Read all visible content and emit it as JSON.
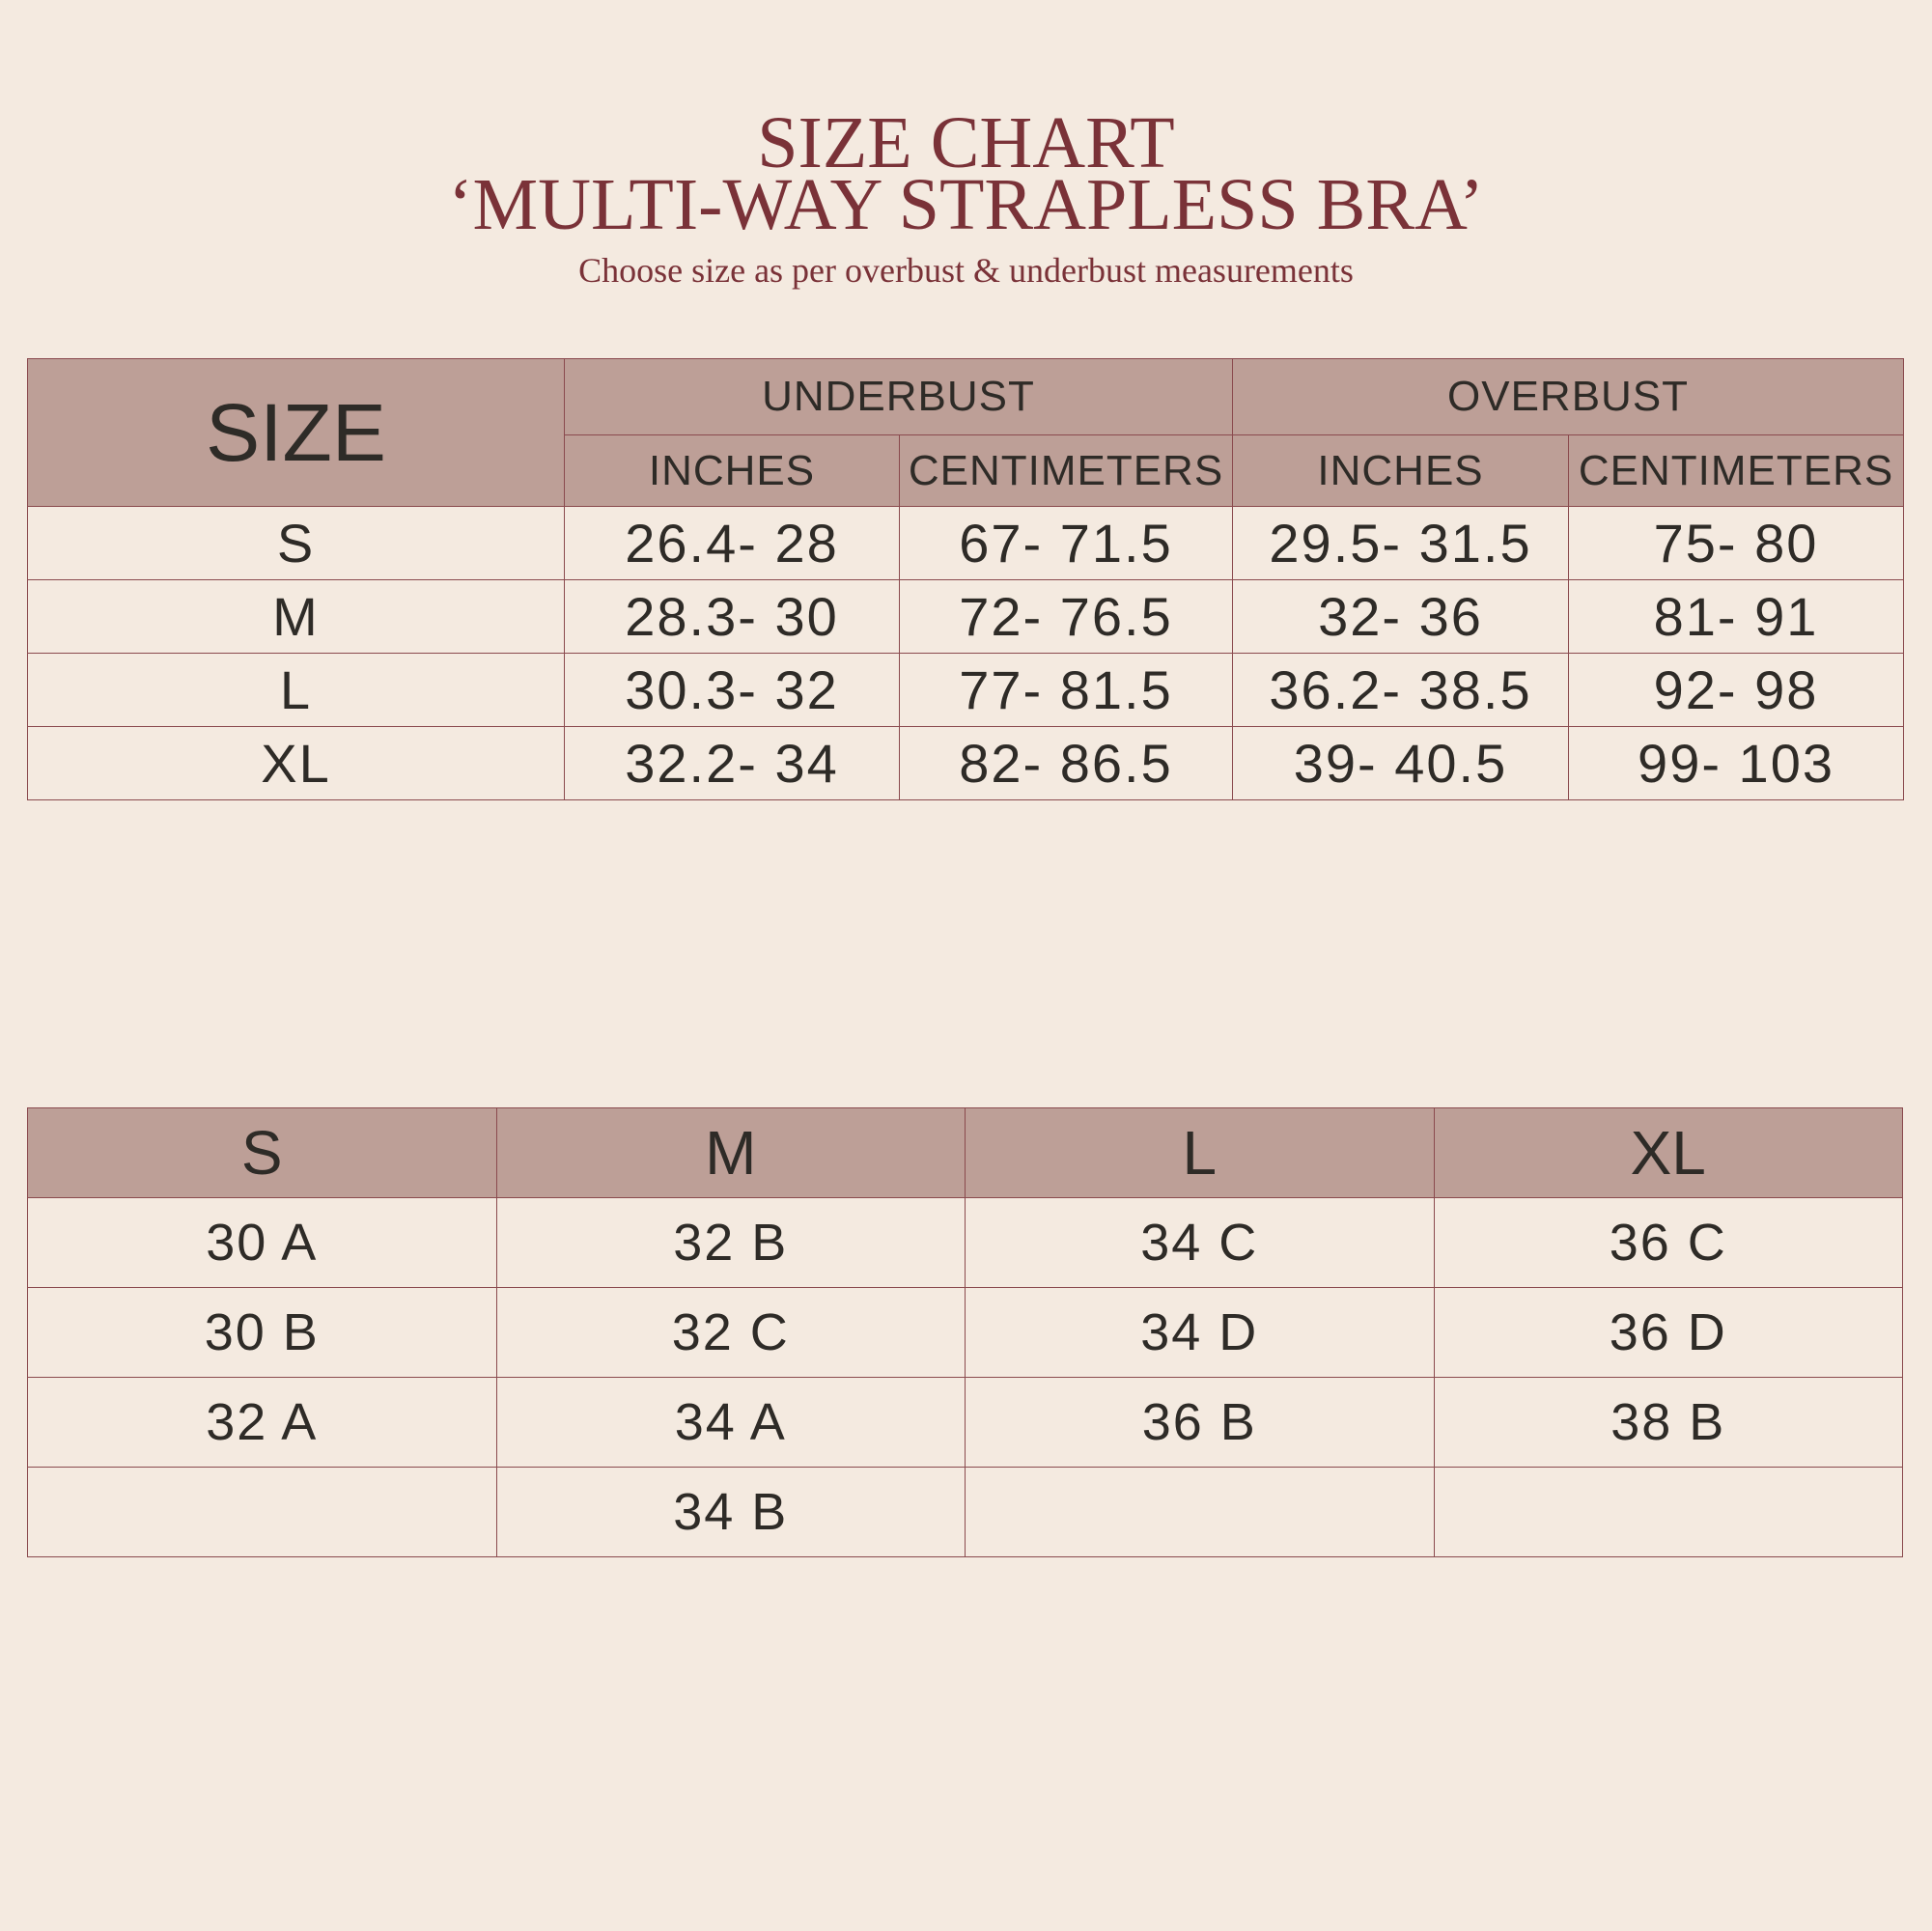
{
  "header": {
    "title_line1": "SIZE CHART",
    "title_line2": "‘MULTI-WAY STRAPLESS  BRA’",
    "subtitle": "Choose size as per overbust & underbust measurements"
  },
  "colors": {
    "background": "#f4eae0",
    "header_fill": "#bd9f97",
    "border": "#8a4a4e",
    "title": "#7a3238",
    "text": "#2e2b27"
  },
  "measurement_table": {
    "size_label": "SIZE",
    "groups": [
      "UNDERBUST",
      "OVERBUST"
    ],
    "units": [
      "INCHES",
      "CENTIMETERS",
      "INCHES",
      "CENTIMETERS"
    ],
    "rows": [
      {
        "size": "S",
        "values": [
          "26.4- 28",
          "67- 71.5",
          "29.5- 31.5",
          "75- 80"
        ]
      },
      {
        "size": "M",
        "values": [
          "28.3- 30",
          "72- 76.5",
          "32- 36",
          "81- 91"
        ]
      },
      {
        "size": "L",
        "values": [
          "30.3- 32",
          "77- 81.5",
          "36.2- 38.5",
          "92- 98"
        ]
      },
      {
        "size": "XL",
        "values": [
          "32.2- 34",
          "82- 86.5",
          "39- 40.5",
          "99- 103"
        ]
      }
    ]
  },
  "cup_table": {
    "columns": [
      "S",
      "M",
      "L",
      "XL"
    ],
    "rows": [
      [
        "30 A",
        "32 B",
        "34 C",
        "36 C"
      ],
      [
        "30 B",
        "32 C",
        "34 D",
        "36 D"
      ],
      [
        "32 A",
        "34 A",
        "36 B",
        "38 B"
      ],
      [
        "",
        "34 B",
        "",
        ""
      ]
    ]
  }
}
